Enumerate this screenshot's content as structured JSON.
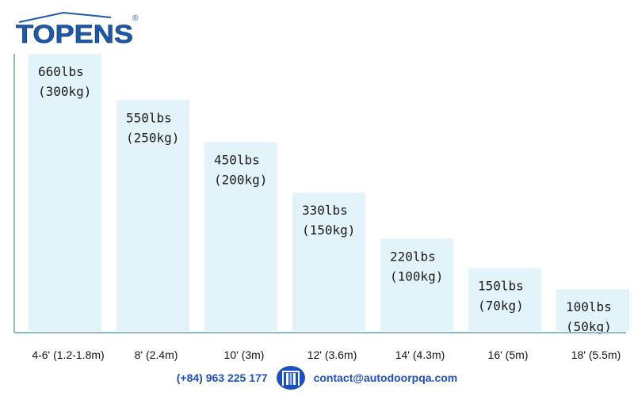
{
  "brand": {
    "name": "TOPENS",
    "trademark": "®",
    "color": "#1f58a8"
  },
  "chart_data": {
    "type": "bar",
    "title": "",
    "xlabel": "",
    "ylabel": "",
    "ylim": [
      0,
      700
    ],
    "grid": false,
    "categories": [
      "4-6' (1.2-1.8m)",
      "8' (2.4m)",
      "10' (3m)",
      "12' (3.6m)",
      "14' (4.3m)",
      "16' (5m)",
      "18' (5.5m)"
    ],
    "values": [
      660,
      550,
      450,
      330,
      220,
      150,
      100
    ],
    "data_labels": [
      [
        "660lbs",
        "(300kg)"
      ],
      [
        "550lbs",
        "(250kg)"
      ],
      [
        "450lbs",
        "(200kg)"
      ],
      [
        "330lbs",
        "(150kg)"
      ],
      [
        "220lbs",
        "(100kg)"
      ],
      [
        "150lbs",
        "(70kg)"
      ],
      [
        "100lbs",
        "(50kg)"
      ]
    ],
    "bar_color": "#e3f3fa",
    "axis_color": "#8ab8cc"
  },
  "footer": {
    "phone": "(+84) 963 225 177",
    "email": "contact@autodoorpqa.com",
    "icon": "door-icon",
    "text_color": "#1e4fc2"
  }
}
